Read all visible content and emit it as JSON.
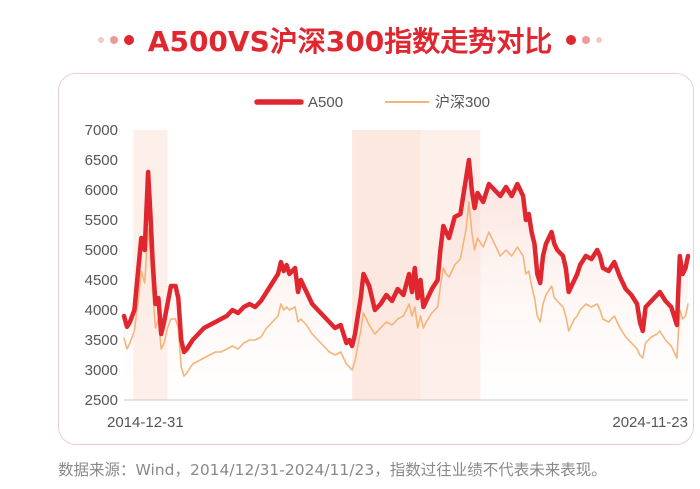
{
  "title": "A500VS沪深300指数走势对比",
  "source_note": "数据来源：Wind，2014/12/31-2024/11/23，指数过往业绩不代表未来表现。",
  "colors": {
    "accent": "#e0262e",
    "a500_line": "#e0262e",
    "csi300_line": "#f5b479",
    "shade": "#fbe6de",
    "axis_text": "#555555",
    "card_border": "#f1cccc"
  },
  "chart_data": {
    "type": "line",
    "title": "",
    "xlabel": "",
    "ylabel": "",
    "legend_position": "top-center",
    "grid": false,
    "ylim": [
      2500,
      7000
    ],
    "yticks": [
      7000,
      6500,
      6000,
      5500,
      5000,
      4500,
      4000,
      3500,
      3000,
      2500
    ],
    "x_labels": [
      "2014-12-31",
      "2024-11-23"
    ],
    "x_range": [
      2014.997,
      2024.894
    ],
    "highlight_periods": [
      [
        2015.16,
        2015.76
      ],
      [
        2019.0,
        2020.2
      ],
      [
        2020.2,
        2021.25
      ]
    ],
    "series": [
      {
        "name": "A500",
        "points": [
          [
            2014.997,
            3900
          ],
          [
            2015.05,
            3720
          ],
          [
            2015.1,
            3800
          ],
          [
            2015.18,
            4000
          ],
          [
            2015.25,
            4700
          ],
          [
            2015.3,
            5200
          ],
          [
            2015.36,
            5000
          ],
          [
            2015.42,
            6300
          ],
          [
            2015.46,
            5600
          ],
          [
            2015.5,
            4800
          ],
          [
            2015.55,
            4100
          ],
          [
            2015.6,
            4200
          ],
          [
            2015.65,
            3600
          ],
          [
            2015.7,
            3800
          ],
          [
            2015.76,
            4100
          ],
          [
            2015.82,
            4400
          ],
          [
            2015.9,
            4400
          ],
          [
            2015.95,
            4200
          ],
          [
            2016.0,
            3500
          ],
          [
            2016.05,
            3300
          ],
          [
            2016.1,
            3350
          ],
          [
            2016.2,
            3500
          ],
          [
            2016.3,
            3600
          ],
          [
            2016.4,
            3700
          ],
          [
            2016.5,
            3750
          ],
          [
            2016.6,
            3800
          ],
          [
            2016.7,
            3850
          ],
          [
            2016.8,
            3900
          ],
          [
            2016.9,
            4000
          ],
          [
            2017.0,
            3950
          ],
          [
            2017.1,
            4050
          ],
          [
            2017.2,
            4100
          ],
          [
            2017.3,
            4050
          ],
          [
            2017.4,
            4150
          ],
          [
            2017.5,
            4300
          ],
          [
            2017.6,
            4450
          ],
          [
            2017.7,
            4600
          ],
          [
            2017.75,
            4800
          ],
          [
            2017.8,
            4650
          ],
          [
            2017.85,
            4750
          ],
          [
            2017.9,
            4600
          ],
          [
            2018.0,
            4700
          ],
          [
            2018.05,
            4300
          ],
          [
            2018.1,
            4500
          ],
          [
            2018.2,
            4300
          ],
          [
            2018.3,
            4100
          ],
          [
            2018.4,
            4000
          ],
          [
            2018.5,
            3900
          ],
          [
            2018.6,
            3800
          ],
          [
            2018.7,
            3700
          ],
          [
            2018.8,
            3750
          ],
          [
            2018.9,
            3450
          ],
          [
            2018.95,
            3500
          ],
          [
            2019.0,
            3400
          ],
          [
            2019.05,
            3600
          ],
          [
            2019.1,
            3900
          ],
          [
            2019.15,
            4200
          ],
          [
            2019.2,
            4600
          ],
          [
            2019.25,
            4500
          ],
          [
            2019.3,
            4400
          ],
          [
            2019.4,
            4000
          ],
          [
            2019.5,
            4100
          ],
          [
            2019.6,
            4250
          ],
          [
            2019.7,
            4150
          ],
          [
            2019.8,
            4350
          ],
          [
            2019.9,
            4250
          ],
          [
            2020.0,
            4600
          ],
          [
            2020.05,
            4300
          ],
          [
            2020.1,
            4700
          ],
          [
            2020.15,
            4200
          ],
          [
            2020.2,
            4500
          ],
          [
            2020.25,
            4050
          ],
          [
            2020.3,
            4150
          ],
          [
            2020.4,
            4350
          ],
          [
            2020.5,
            4500
          ],
          [
            2020.55,
            5000
          ],
          [
            2020.6,
            5400
          ],
          [
            2020.65,
            5300
          ],
          [
            2020.7,
            5200
          ],
          [
            2020.8,
            5550
          ],
          [
            2020.9,
            5600
          ],
          [
            2020.95,
            5900
          ],
          [
            2021.0,
            6200
          ],
          [
            2021.05,
            6500
          ],
          [
            2021.1,
            6000
          ],
          [
            2021.15,
            5700
          ],
          [
            2021.2,
            5950
          ],
          [
            2021.3,
            5800
          ],
          [
            2021.4,
            6100
          ],
          [
            2021.5,
            6000
          ],
          [
            2021.6,
            5900
          ],
          [
            2021.7,
            6050
          ],
          [
            2021.8,
            5900
          ],
          [
            2021.9,
            6100
          ],
          [
            2022.0,
            5900
          ],
          [
            2022.05,
            5500
          ],
          [
            2022.1,
            5600
          ],
          [
            2022.15,
            5300
          ],
          [
            2022.2,
            5100
          ],
          [
            2022.25,
            4600
          ],
          [
            2022.3,
            4450
          ],
          [
            2022.35,
            4900
          ],
          [
            2022.4,
            5100
          ],
          [
            2022.5,
            5300
          ],
          [
            2022.55,
            5100
          ],
          [
            2022.6,
            5000
          ],
          [
            2022.7,
            4900
          ],
          [
            2022.75,
            4700
          ],
          [
            2022.8,
            4300
          ],
          [
            2022.85,
            4400
          ],
          [
            2022.9,
            4500
          ],
          [
            2022.95,
            4600
          ],
          [
            2023.0,
            4750
          ],
          [
            2023.1,
            4900
          ],
          [
            2023.2,
            4850
          ],
          [
            2023.3,
            5000
          ],
          [
            2023.35,
            4900
          ],
          [
            2023.4,
            4700
          ],
          [
            2023.5,
            4650
          ],
          [
            2023.6,
            4800
          ],
          [
            2023.7,
            4550
          ],
          [
            2023.8,
            4350
          ],
          [
            2023.9,
            4250
          ],
          [
            2024.0,
            4100
          ],
          [
            2024.05,
            3800
          ],
          [
            2024.1,
            3650
          ],
          [
            2024.15,
            4050
          ],
          [
            2024.25,
            4150
          ],
          [
            2024.35,
            4250
          ],
          [
            2024.4,
            4300
          ],
          [
            2024.5,
            4150
          ],
          [
            2024.6,
            4050
          ],
          [
            2024.65,
            3900
          ],
          [
            2024.7,
            3750
          ],
          [
            2024.75,
            4900
          ],
          [
            2024.8,
            4600
          ],
          [
            2024.85,
            4700
          ],
          [
            2024.894,
            4900
          ]
        ]
      },
      {
        "name": "沪深300",
        "points": [
          [
            2014.997,
            3530
          ],
          [
            2015.05,
            3350
          ],
          [
            2015.1,
            3450
          ],
          [
            2015.18,
            3650
          ],
          [
            2015.25,
            4200
          ],
          [
            2015.3,
            4650
          ],
          [
            2015.36,
            4450
          ],
          [
            2015.42,
            5350
          ],
          [
            2015.46,
            4950
          ],
          [
            2015.5,
            4300
          ],
          [
            2015.55,
            3700
          ],
          [
            2015.6,
            3850
          ],
          [
            2015.65,
            3350
          ],
          [
            2015.7,
            3450
          ],
          [
            2015.76,
            3700
          ],
          [
            2015.82,
            3850
          ],
          [
            2015.9,
            3850
          ],
          [
            2015.95,
            3700
          ],
          [
            2016.0,
            3050
          ],
          [
            2016.05,
            2900
          ],
          [
            2016.1,
            2950
          ],
          [
            2016.2,
            3100
          ],
          [
            2016.3,
            3150
          ],
          [
            2016.4,
            3200
          ],
          [
            2016.5,
            3250
          ],
          [
            2016.6,
            3300
          ],
          [
            2016.7,
            3300
          ],
          [
            2016.8,
            3350
          ],
          [
            2016.9,
            3400
          ],
          [
            2017.0,
            3350
          ],
          [
            2017.1,
            3450
          ],
          [
            2017.2,
            3500
          ],
          [
            2017.3,
            3500
          ],
          [
            2017.4,
            3550
          ],
          [
            2017.5,
            3700
          ],
          [
            2017.6,
            3800
          ],
          [
            2017.7,
            3900
          ],
          [
            2017.75,
            4100
          ],
          [
            2017.8,
            4000
          ],
          [
            2017.85,
            4050
          ],
          [
            2017.9,
            4000
          ],
          [
            2018.0,
            4050
          ],
          [
            2018.05,
            3800
          ],
          [
            2018.1,
            3850
          ],
          [
            2018.2,
            3750
          ],
          [
            2018.3,
            3600
          ],
          [
            2018.4,
            3500
          ],
          [
            2018.5,
            3400
          ],
          [
            2018.6,
            3300
          ],
          [
            2018.7,
            3250
          ],
          [
            2018.8,
            3300
          ],
          [
            2018.9,
            3100
          ],
          [
            2018.95,
            3050
          ],
          [
            2019.0,
            3000
          ],
          [
            2019.05,
            3150
          ],
          [
            2019.1,
            3400
          ],
          [
            2019.15,
            3650
          ],
          [
            2019.2,
            3950
          ],
          [
            2019.25,
            3850
          ],
          [
            2019.3,
            3750
          ],
          [
            2019.4,
            3600
          ],
          [
            2019.5,
            3700
          ],
          [
            2019.6,
            3800
          ],
          [
            2019.7,
            3750
          ],
          [
            2019.8,
            3850
          ],
          [
            2019.9,
            3900
          ],
          [
            2020.0,
            4100
          ],
          [
            2020.05,
            3900
          ],
          [
            2020.1,
            4050
          ],
          [
            2020.15,
            3700
          ],
          [
            2020.2,
            3900
          ],
          [
            2020.25,
            3700
          ],
          [
            2020.3,
            3800
          ],
          [
            2020.4,
            3950
          ],
          [
            2020.5,
            4050
          ],
          [
            2020.55,
            4400
          ],
          [
            2020.6,
            4700
          ],
          [
            2020.65,
            4600
          ],
          [
            2020.7,
            4550
          ],
          [
            2020.8,
            4750
          ],
          [
            2020.9,
            4850
          ],
          [
            2020.95,
            5100
          ],
          [
            2021.0,
            5350
          ],
          [
            2021.05,
            5800
          ],
          [
            2021.1,
            5300
          ],
          [
            2021.15,
            5000
          ],
          [
            2021.2,
            5200
          ],
          [
            2021.3,
            5050
          ],
          [
            2021.4,
            5300
          ],
          [
            2021.5,
            5100
          ],
          [
            2021.6,
            4900
          ],
          [
            2021.7,
            5000
          ],
          [
            2021.8,
            4900
          ],
          [
            2021.9,
            5050
          ],
          [
            2022.0,
            4900
          ],
          [
            2022.05,
            4600
          ],
          [
            2022.1,
            4650
          ],
          [
            2022.15,
            4400
          ],
          [
            2022.2,
            4200
          ],
          [
            2022.25,
            3900
          ],
          [
            2022.3,
            3800
          ],
          [
            2022.35,
            4100
          ],
          [
            2022.4,
            4250
          ],
          [
            2022.5,
            4400
          ],
          [
            2022.55,
            4200
          ],
          [
            2022.6,
            4150
          ],
          [
            2022.7,
            4050
          ],
          [
            2022.75,
            3900
          ],
          [
            2022.8,
            3650
          ],
          [
            2022.85,
            3750
          ],
          [
            2022.9,
            3850
          ],
          [
            2022.95,
            3900
          ],
          [
            2023.0,
            4000
          ],
          [
            2023.1,
            4100
          ],
          [
            2023.2,
            4050
          ],
          [
            2023.3,
            4100
          ],
          [
            2023.35,
            4000
          ],
          [
            2023.4,
            3850
          ],
          [
            2023.5,
            3800
          ],
          [
            2023.6,
            3900
          ],
          [
            2023.7,
            3700
          ],
          [
            2023.8,
            3550
          ],
          [
            2023.9,
            3450
          ],
          [
            2024.0,
            3350
          ],
          [
            2024.05,
            3250
          ],
          [
            2024.1,
            3200
          ],
          [
            2024.15,
            3450
          ],
          [
            2024.25,
            3550
          ],
          [
            2024.35,
            3600
          ],
          [
            2024.4,
            3650
          ],
          [
            2024.5,
            3500
          ],
          [
            2024.6,
            3400
          ],
          [
            2024.65,
            3300
          ],
          [
            2024.7,
            3200
          ],
          [
            2024.75,
            4000
          ],
          [
            2024.8,
            3850
          ],
          [
            2024.85,
            3900
          ],
          [
            2024.894,
            4100
          ]
        ]
      }
    ]
  }
}
